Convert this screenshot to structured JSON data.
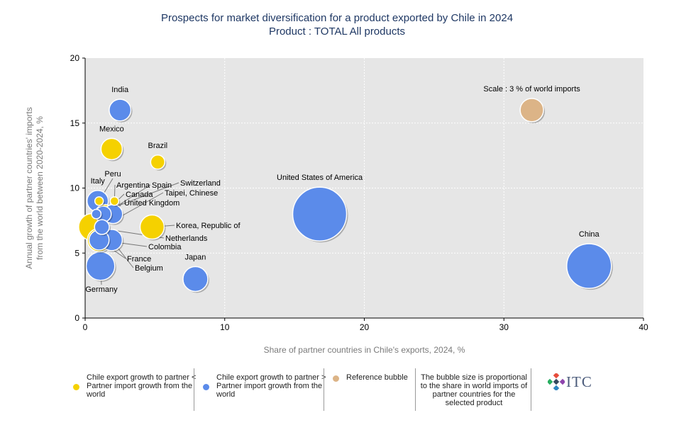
{
  "title": {
    "line1": "Prospects for market diversification for a product exported by Chile in 2024",
    "line2": "Product : TOTAL All products"
  },
  "colors": {
    "yellow": "#f5d100",
    "blue": "#5b8bea",
    "reference": "#dcb487",
    "plot_bg": "#e6e6e6",
    "title": "#1f3864"
  },
  "chart_data": {
    "type": "scatter",
    "title": "Prospects for market diversification for a product exported by Chile in 2024",
    "subtitle": "Product : TOTAL All products",
    "xlabel": "Share of partner countries in Chile's exports, 2024, %",
    "ylabel": "Annual growth of partner countries' imports from the world between 2020-2024, %",
    "xlim": [
      0,
      40
    ],
    "ylim": [
      0,
      20
    ],
    "xticks": [
      0,
      10,
      20,
      30,
      40
    ],
    "yticks": [
      0,
      5,
      10,
      15,
      20
    ],
    "grid": true,
    "points": [
      {
        "name": "India",
        "x": 2.5,
        "y": 16,
        "size": 2.6,
        "group": "blue",
        "label": "above"
      },
      {
        "name": "Mexico",
        "x": 1.9,
        "y": 13,
        "size": 2.5,
        "group": "yellow",
        "label": "above"
      },
      {
        "name": "Brazil",
        "x": 5.2,
        "y": 12,
        "size": 1.1,
        "group": "yellow",
        "label": "above"
      },
      {
        "name": "United States of America",
        "x": 16.8,
        "y": 8,
        "size": 16,
        "group": "blue",
        "label": "above"
      },
      {
        "name": "China",
        "x": 36.1,
        "y": 4,
        "size": 11,
        "group": "blue",
        "label": "above"
      },
      {
        "name": "Japan",
        "x": 7.9,
        "y": 3,
        "size": 3.4,
        "group": "blue",
        "label": "above"
      },
      {
        "name": "Korea, Republic of",
        "x": 4.8,
        "y": 7,
        "size": 3.2,
        "group": "yellow",
        "label": "leader"
      },
      {
        "name": "Italy",
        "x": 0.9,
        "y": 9,
        "size": 2.5,
        "group": "blue",
        "label": "above"
      },
      {
        "name": "Peru",
        "x": 1.0,
        "y": 9,
        "size": 0.4,
        "group": "yellow",
        "label": "leader"
      },
      {
        "name": "Argentina",
        "x": 2.1,
        "y": 9,
        "size": 0.4,
        "group": "yellow",
        "label": "leader"
      },
      {
        "name": "Spain",
        "x": 1.4,
        "y": 8,
        "size": 2.0,
        "group": "yellow",
        "label": "leader"
      },
      {
        "name": "Canada",
        "x": 1.3,
        "y": 8,
        "size": 1.4,
        "group": "blue",
        "label": "leader"
      },
      {
        "name": "Switzerland",
        "x": 0.8,
        "y": 8,
        "size": 0.5,
        "group": "blue",
        "label": "leader"
      },
      {
        "name": "Taipei, Chinese",
        "x": 1.2,
        "y": 7,
        "size": 1.2,
        "group": "blue",
        "label": "leader"
      },
      {
        "name": "United Kingdom",
        "x": 2.0,
        "y": 8,
        "size": 2.0,
        "group": "blue",
        "label": "leader"
      },
      {
        "name": "Netherlands",
        "x": 0.5,
        "y": 7,
        "size": 4.0,
        "group": "yellow",
        "label": "leader"
      },
      {
        "name": "Colombia",
        "x": 1.0,
        "y": 6,
        "size": 3.0,
        "group": "yellow",
        "label": "leader"
      },
      {
        "name": "France",
        "x": 1.0,
        "y": 6,
        "size": 2.2,
        "group": "blue",
        "label": "leader"
      },
      {
        "name": "Belgium",
        "x": 1.9,
        "y": 6,
        "size": 2.5,
        "group": "blue",
        "label": "leader"
      },
      {
        "name": "Germany",
        "x": 1.1,
        "y": 4,
        "size": 4.5,
        "group": "blue",
        "label": "below"
      }
    ],
    "reference_bubble": {
      "x": 32,
      "y": 16,
      "size": 3,
      "label": "Scale : 3 % of world imports"
    }
  },
  "legend": {
    "yellow_text": "Chile export growth to partner < Partner import growth from the world",
    "blue_text": "Chile export growth to partner > Partner import growth from the world",
    "reference_text": "Reference bubble",
    "note": "The bubble size is proportional to the share in world imports of partner countries for the selected product",
    "logo_text": "ITC"
  }
}
